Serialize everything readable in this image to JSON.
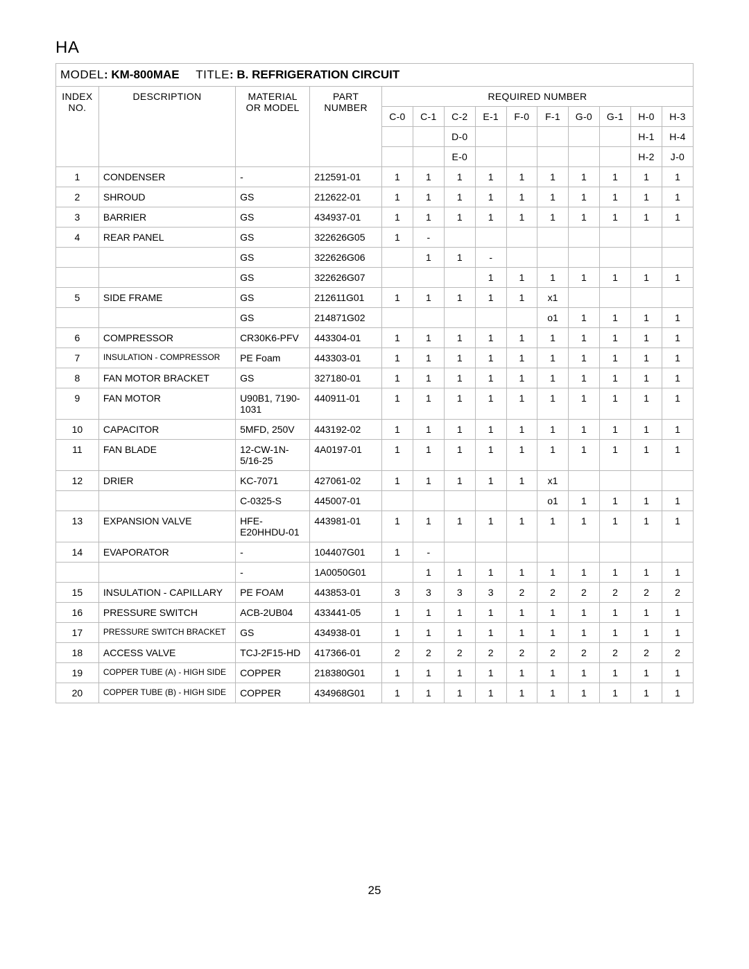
{
  "heading": "HA",
  "model_label": "MODEL",
  "model_value": ": KM-800MAE",
  "title_label": "TITLE",
  "title_value": ": B. REFRIGERATION CIRCUIT",
  "columns": {
    "index": "INDEX NO.",
    "description": "DESCRIPTION",
    "material": "MATERIAL OR MODEL",
    "part": "PART NUMBER",
    "required": "REQUIRED NUMBER"
  },
  "qty_headers": [
    [
      "C-0",
      "C-1",
      "C-2",
      "E-1",
      "F-0",
      "F-1",
      "G-0",
      "G-1",
      "H-0",
      "H-3"
    ],
    [
      "",
      "",
      "D-0",
      "",
      "",
      "",
      "",
      "",
      "H-1",
      "H-4"
    ],
    [
      "",
      "",
      "E-0",
      "",
      "",
      "",
      "",
      "",
      "H-2",
      "J-0"
    ]
  ],
  "rows": [
    {
      "index": "1",
      "desc": "CONDENSER",
      "mat": "-",
      "part": "212591-01",
      "q": [
        "1",
        "1",
        "1",
        "1",
        "1",
        "1",
        "1",
        "1",
        "1",
        "1"
      ]
    },
    {
      "index": "2",
      "desc": "SHROUD",
      "mat": "GS",
      "part": "212622-01",
      "q": [
        "1",
        "1",
        "1",
        "1",
        "1",
        "1",
        "1",
        "1",
        "1",
        "1"
      ]
    },
    {
      "index": "3",
      "desc": "BARRIER",
      "mat": "GS",
      "part": "434937-01",
      "q": [
        "1",
        "1",
        "1",
        "1",
        "1",
        "1",
        "1",
        "1",
        "1",
        "1"
      ]
    },
    {
      "index": "4",
      "desc": "REAR PANEL",
      "mat": "GS",
      "part": "322626G05",
      "q": [
        "1",
        "-",
        "",
        "",
        "",
        "",
        "",
        "",
        "",
        ""
      ]
    },
    {
      "index": "",
      "desc": "",
      "mat": "GS",
      "part": "322626G06",
      "q": [
        "",
        "1",
        "1",
        "-",
        "",
        "",
        "",
        "",
        "",
        ""
      ]
    },
    {
      "index": "",
      "desc": "",
      "mat": "GS",
      "part": "322626G07",
      "q": [
        "",
        "",
        "",
        "1",
        "1",
        "1",
        "1",
        "1",
        "1",
        "1"
      ]
    },
    {
      "index": "5",
      "desc": "SIDE FRAME",
      "mat": "GS",
      "part": "212611G01",
      "q": [
        "1",
        "1",
        "1",
        "1",
        "1",
        "x1",
        "",
        "",
        "",
        ""
      ]
    },
    {
      "index": "",
      "desc": "",
      "mat": "GS",
      "part": "214871G02",
      "q": [
        "",
        "",
        "",
        "",
        "",
        "o1",
        "1",
        "1",
        "1",
        "1"
      ]
    },
    {
      "index": "6",
      "desc": "COMPRESSOR",
      "mat": "CR30K6-PFV",
      "part": "443304-01",
      "q": [
        "1",
        "1",
        "1",
        "1",
        "1",
        "1",
        "1",
        "1",
        "1",
        "1"
      ]
    },
    {
      "index": "7",
      "desc": "INSULATION - COMPRESSOR",
      "desc_small": true,
      "mat": "PE Foam",
      "part": "443303-01",
      "q": [
        "1",
        "1",
        "1",
        "1",
        "1",
        "1",
        "1",
        "1",
        "1",
        "1"
      ]
    },
    {
      "index": "8",
      "desc": "FAN MOTOR BRACKET",
      "mat": "GS",
      "part": "327180-01",
      "q": [
        "1",
        "1",
        "1",
        "1",
        "1",
        "1",
        "1",
        "1",
        "1",
        "1"
      ]
    },
    {
      "index": "9",
      "desc": "FAN MOTOR",
      "mat": "U90B1, 7190-1031",
      "part": "440911-01",
      "q": [
        "1",
        "1",
        "1",
        "1",
        "1",
        "1",
        "1",
        "1",
        "1",
        "1"
      ]
    },
    {
      "index": "10",
      "desc": "CAPACITOR",
      "mat": "5MFD, 250V",
      "part": "443192-02",
      "q": [
        "1",
        "1",
        "1",
        "1",
        "1",
        "1",
        "1",
        "1",
        "1",
        "1"
      ]
    },
    {
      "index": "11",
      "desc": "FAN BLADE",
      "mat": "12-CW-1N-5/16-25",
      "part": "4A0197-01",
      "q": [
        "1",
        "1",
        "1",
        "1",
        "1",
        "1",
        "1",
        "1",
        "1",
        "1"
      ]
    },
    {
      "index": "12",
      "desc": "DRIER",
      "mat": "KC-7071",
      "part": "427061-02",
      "q": [
        "1",
        "1",
        "1",
        "1",
        "1",
        "x1",
        "",
        "",
        "",
        ""
      ]
    },
    {
      "index": "",
      "desc": "",
      "mat": "C-0325-S",
      "part": "445007-01",
      "q": [
        "",
        "",
        "",
        "",
        "",
        "o1",
        "1",
        "1",
        "1",
        "1"
      ]
    },
    {
      "index": "13",
      "desc": "EXPANSION VALVE",
      "mat": "HFE-E20HHDU-01",
      "part": "443981-01",
      "q": [
        "1",
        "1",
        "1",
        "1",
        "1",
        "1",
        "1",
        "1",
        "1",
        "1"
      ]
    },
    {
      "index": "14",
      "desc": "EVAPORATOR",
      "mat": "-",
      "part": "104407G01",
      "q": [
        "1",
        "-",
        "",
        "",
        "",
        "",
        "",
        "",
        "",
        ""
      ]
    },
    {
      "index": "",
      "desc": "",
      "mat": "-",
      "part": "1A0050G01",
      "q": [
        "",
        "1",
        "1",
        "1",
        "1",
        "1",
        "1",
        "1",
        "1",
        "1"
      ]
    },
    {
      "index": "15",
      "desc": "INSULATION - CAPILLARY",
      "mat": "PE FOAM",
      "part": "443853-01",
      "q": [
        "3",
        "3",
        "3",
        "3",
        "2",
        "2",
        "2",
        "2",
        "2",
        "2"
      ]
    },
    {
      "index": "16",
      "desc": "PRESSURE SWITCH",
      "mat": "ACB-2UB04",
      "part": "433441-05",
      "q": [
        "1",
        "1",
        "1",
        "1",
        "1",
        "1",
        "1",
        "1",
        "1",
        "1"
      ]
    },
    {
      "index": "17",
      "desc": "PRESSURE SWITCH BRACKET",
      "desc_small": true,
      "mat": "GS",
      "part": "434938-01",
      "q": [
        "1",
        "1",
        "1",
        "1",
        "1",
        "1",
        "1",
        "1",
        "1",
        "1"
      ]
    },
    {
      "index": "18",
      "desc": "ACCESS VALVE",
      "mat": "TCJ-2F15-HD",
      "part": "417366-01",
      "q": [
        "2",
        "2",
        "2",
        "2",
        "2",
        "2",
        "2",
        "2",
        "2",
        "2"
      ]
    },
    {
      "index": "19",
      "desc": "COPPER TUBE (A) - HIGH SIDE",
      "desc_small": true,
      "mat": "COPPER",
      "part": "218380G01",
      "q": [
        "1",
        "1",
        "1",
        "1",
        "1",
        "1",
        "1",
        "1",
        "1",
        "1"
      ]
    },
    {
      "index": "20",
      "desc": "COPPER TUBE (B) - HIGH SIDE",
      "desc_small": true,
      "mat": "COPPER",
      "part": "434968G01",
      "q": [
        "1",
        "1",
        "1",
        "1",
        "1",
        "1",
        "1",
        "1",
        "1",
        "1"
      ]
    }
  ],
  "page_number": "25"
}
